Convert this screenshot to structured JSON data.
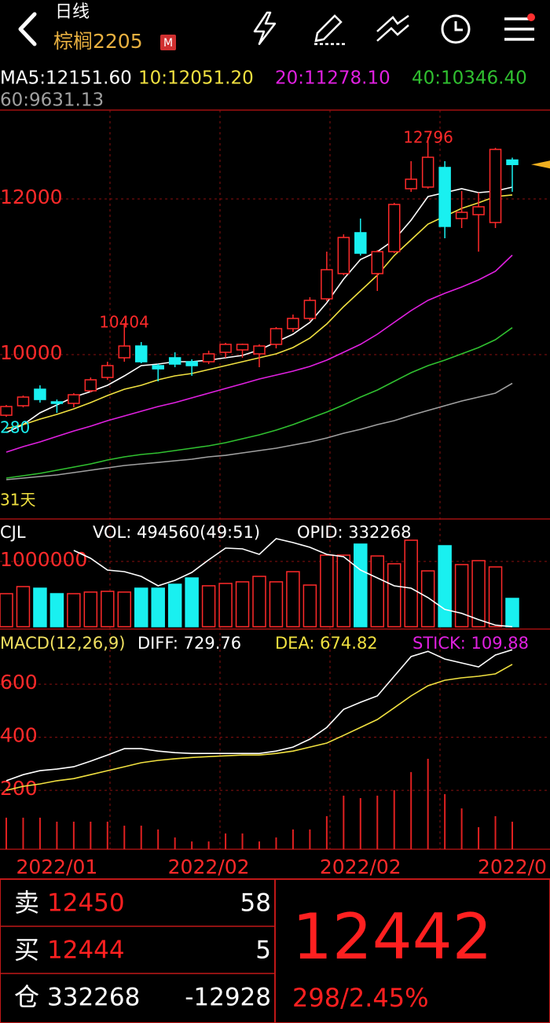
{
  "header": {
    "period": "日线",
    "symbol": "棕榈2205",
    "badge": "M"
  },
  "chart_data": [
    {
      "type": "candlestick",
      "open": [
        9222,
        9344,
        9556,
        9394,
        9374,
        9536,
        9707,
        9960,
        10111,
        9859,
        9960,
        9909,
        9909,
        10030,
        10061,
        10010,
        10132,
        10334,
        10465,
        10717,
        11041,
        11566,
        11041,
        11323,
        12131,
        12152,
        12404,
        11748,
        11798,
        11697,
        12500
      ],
      "high": [
        9354,
        9475,
        9606,
        9424,
        9505,
        9707,
        9909,
        10404,
        10162,
        9879,
        10030,
        9940,
        10051,
        10152,
        10142,
        10132,
        10354,
        10515,
        10738,
        11323,
        11545,
        11748,
        11344,
        11950,
        12485,
        12796,
        12485,
        12101,
        12081,
        12657,
        12530
      ],
      "low": [
        9202,
        9323,
        9384,
        9253,
        9323,
        9515,
        9677,
        9909,
        9889,
        9657,
        9839,
        9728,
        9879,
        9960,
        9960,
        9839,
        10081,
        10293,
        10435,
        10687,
        11020,
        11273,
        10818,
        11303,
        12091,
        12131,
        11495,
        11626,
        11323,
        11626,
        12091
      ],
      "close": [
        9334,
        9455,
        9424,
        9374,
        9485,
        9677,
        9859,
        10111,
        9909,
        9818,
        9879,
        9859,
        10010,
        10132,
        10132,
        10111,
        10334,
        10465,
        10697,
        11091,
        11505,
        11303,
        11323,
        11929,
        12253,
        12535,
        11647,
        11828,
        11899,
        12636,
        12442
      ],
      "up_color": "#ff2a2a",
      "down_color": "#19f0f0",
      "ylim": [
        7940,
        13141
      ],
      "yticks": [
        10000,
        12000
      ],
      "grid": true,
      "lines": [
        {
          "label": "MA5:12151.60",
          "color": "#ffffff",
          "values": [
            9000,
            9101,
            9253,
            9354,
            9455,
            9526,
            9606,
            9728,
            9859,
            9879,
            9909,
            9909,
            9930,
            9960,
            9990,
            10061,
            10162,
            10263,
            10414,
            10667,
            10970,
            11222,
            11323,
            11475,
            11727,
            12030,
            12081,
            12131,
            12081,
            12101,
            12151.6
          ]
        },
        {
          "label": "10:12051.20",
          "color": "#f0e040",
          "values": [
            9051,
            9101,
            9172,
            9233,
            9303,
            9384,
            9475,
            9556,
            9606,
            9677,
            9728,
            9758,
            9808,
            9859,
            9909,
            9960,
            10010,
            10091,
            10212,
            10394,
            10616,
            10818,
            11020,
            11273,
            11475,
            11677,
            11778,
            11879,
            11950,
            12030,
            12051.2
          ]
        },
        {
          "label": "20:11278.10",
          "color": "#e020e0",
          "values": [
            8748,
            8819,
            8879,
            8950,
            9020,
            9081,
            9152,
            9212,
            9273,
            9334,
            9384,
            9445,
            9505,
            9566,
            9626,
            9687,
            9738,
            9788,
            9849,
            9930,
            10030,
            10132,
            10263,
            10414,
            10566,
            10697,
            10788,
            10869,
            10960,
            11071,
            11278.1
          ]
        },
        {
          "label": "40:10346.40",
          "color": "#30c030",
          "values": [
            8415,
            8445,
            8475,
            8516,
            8556,
            8596,
            8647,
            8687,
            8718,
            8738,
            8768,
            8798,
            8829,
            8869,
            8920,
            8970,
            9031,
            9101,
            9182,
            9263,
            9354,
            9455,
            9546,
            9657,
            9768,
            9859,
            9930,
            10010,
            10091,
            10192,
            10346.4
          ]
        },
        {
          "label": "60:9631.13",
          "color": "#a0a0a0",
          "values": [
            8394,
            8415,
            8435,
            8455,
            8485,
            8516,
            8546,
            8576,
            8596,
            8616,
            8637,
            8657,
            8687,
            8707,
            8738,
            8768,
            8798,
            8839,
            8879,
            8930,
            8990,
            9041,
            9101,
            9152,
            9222,
            9283,
            9344,
            9404,
            9455,
            9505,
            9631.13
          ]
        }
      ],
      "annotations": [
        {
          "text": "12796",
          "color": "#ff2a2a"
        },
        {
          "text": "10404",
          "color": "#ff2a2a"
        },
        {
          "text": "280",
          "color": "#19f0f0"
        },
        {
          "text": "31天",
          "color": "#f0e040"
        }
      ]
    },
    {
      "type": "bar",
      "title": "CJL",
      "volume_label": "VOL: 494560(49:51)",
      "opid_label": "OPID: 332268",
      "values": [
        559000,
        656000,
        634000,
        559000,
        559000,
        581000,
        591000,
        581000,
        634000,
        634000,
        688000,
        774000,
        667000,
        699000,
        721000,
        796000,
        721000,
        860000,
        677000,
        1086000,
        1086000,
        1237000,
        1075000,
        968000,
        1290000,
        871000,
        1215000,
        957000,
        1011000,
        925000,
        494560
      ],
      "ylim": [
        107540,
        1527070
      ],
      "yticks": [
        1000000
      ],
      "series": [
        {
          "color": "#ffffff",
          "axis": "y2",
          "values": [
            null,
            null,
            null,
            null,
            477768,
            462768,
            440268,
            437268,
            428268,
            410268,
            420768,
            435768,
            459768,
            482268,
            480768,
            470268,
            500268,
            492768,
            483768,
            470268,
            465768,
            440268,
            425268,
            410268,
            405768,
            387768,
            365268,
            357768,
            345768,
            335268,
            332268
          ]
        }
      ],
      "y2lim": [
        332268,
        530268
      ]
    },
    {
      "type": "line",
      "title": "MACD(12,26,9)",
      "ylim": [
        -22,
        793
      ],
      "yticks": [
        200,
        400,
        600
      ],
      "y2lim": [
        0,
        863.5
      ],
      "categories": [
        null,
        null,
        null,
        "2022/01",
        null,
        null,
        null,
        null,
        null,
        null,
        null,
        null,
        "2022/02",
        null,
        null,
        null,
        null,
        null,
        null,
        null,
        null,
        "2022/02",
        null,
        null,
        null,
        null,
        null,
        null,
        null,
        null,
        "2022/0"
      ],
      "series": [
        {
          "name": "DIFF: 729.76",
          "color": "#ffffff",
          "values": [
            236,
            259,
            274,
            280,
            289,
            310,
            333,
            357,
            357,
            348,
            342,
            339,
            339,
            339,
            339,
            339,
            348,
            363,
            393,
            437,
            505,
            532,
            556,
            630,
            704,
            724,
            695,
            680,
            665,
            710,
            729.76
          ]
        },
        {
          "name": "DEA: 674.82",
          "color": "#f0e040",
          "values": [
            200,
            215,
            224,
            236,
            244,
            259,
            274,
            289,
            304,
            313,
            319,
            324,
            327,
            330,
            333,
            333,
            339,
            348,
            363,
            378,
            407,
            437,
            467,
            511,
            556,
            594,
            615,
            624,
            630,
            639,
            674.82
          ]
        },
        {
          "name": "STICK: 109.88",
          "color": "#e020e0",
          "bar_color": "#e02020",
          "axis": "y2",
          "values": [
            126,
            126,
            126,
            110,
            110,
            110,
            110,
            94,
            94,
            79,
            47,
            31,
            31,
            63,
            63,
            31,
            47,
            79,
            79,
            132,
            214,
            204,
            214,
            236,
            308,
            361,
            220,
            163,
            88,
            132,
            109.88
          ]
        }
      ]
    }
  ],
  "quote": {
    "rows": [
      {
        "label": "卖",
        "price": 12450,
        "amount": 58
      },
      {
        "label": "买",
        "price": 12444,
        "amount": 5
      },
      {
        "label": "仓",
        "price": 332268,
        "amount": -12928
      }
    ],
    "last": 12442,
    "change": "298/2.45%"
  }
}
